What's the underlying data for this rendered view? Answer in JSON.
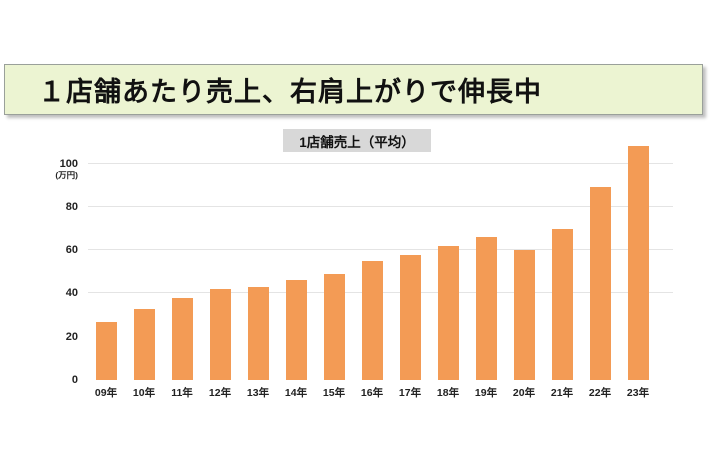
{
  "slide": {
    "headline": "１店舗あたり売上、右肩上がりで伸長中",
    "headline_bg": "#ecf4d2"
  },
  "colors": {
    "bar": "#f39b55",
    "grid": "#e4e4e4",
    "chart_title_bg": "#d8d8d8",
    "text": "#111111"
  },
  "chart_data": {
    "type": "bar",
    "title": "1店舗売上（平均）",
    "unit_label": "(万円)",
    "categories": [
      "09年",
      "10年",
      "11年",
      "12年",
      "13年",
      "14年",
      "15年",
      "16年",
      "17年",
      "18年",
      "19年",
      "20年",
      "21年",
      "22年",
      "23年"
    ],
    "values": [
      27,
      33,
      38,
      42,
      43,
      46,
      49,
      55,
      58,
      62,
      66,
      60,
      70,
      89,
      108
    ],
    "xlabel": "",
    "ylabel": "万円",
    "yticks": [
      0,
      20,
      40,
      60,
      80,
      100
    ],
    "gridlines": [
      40,
      60,
      80,
      100
    ],
    "ylim": [
      0,
      110
    ],
    "grid": true,
    "legend": false,
    "bar_color": "#f39b55"
  }
}
